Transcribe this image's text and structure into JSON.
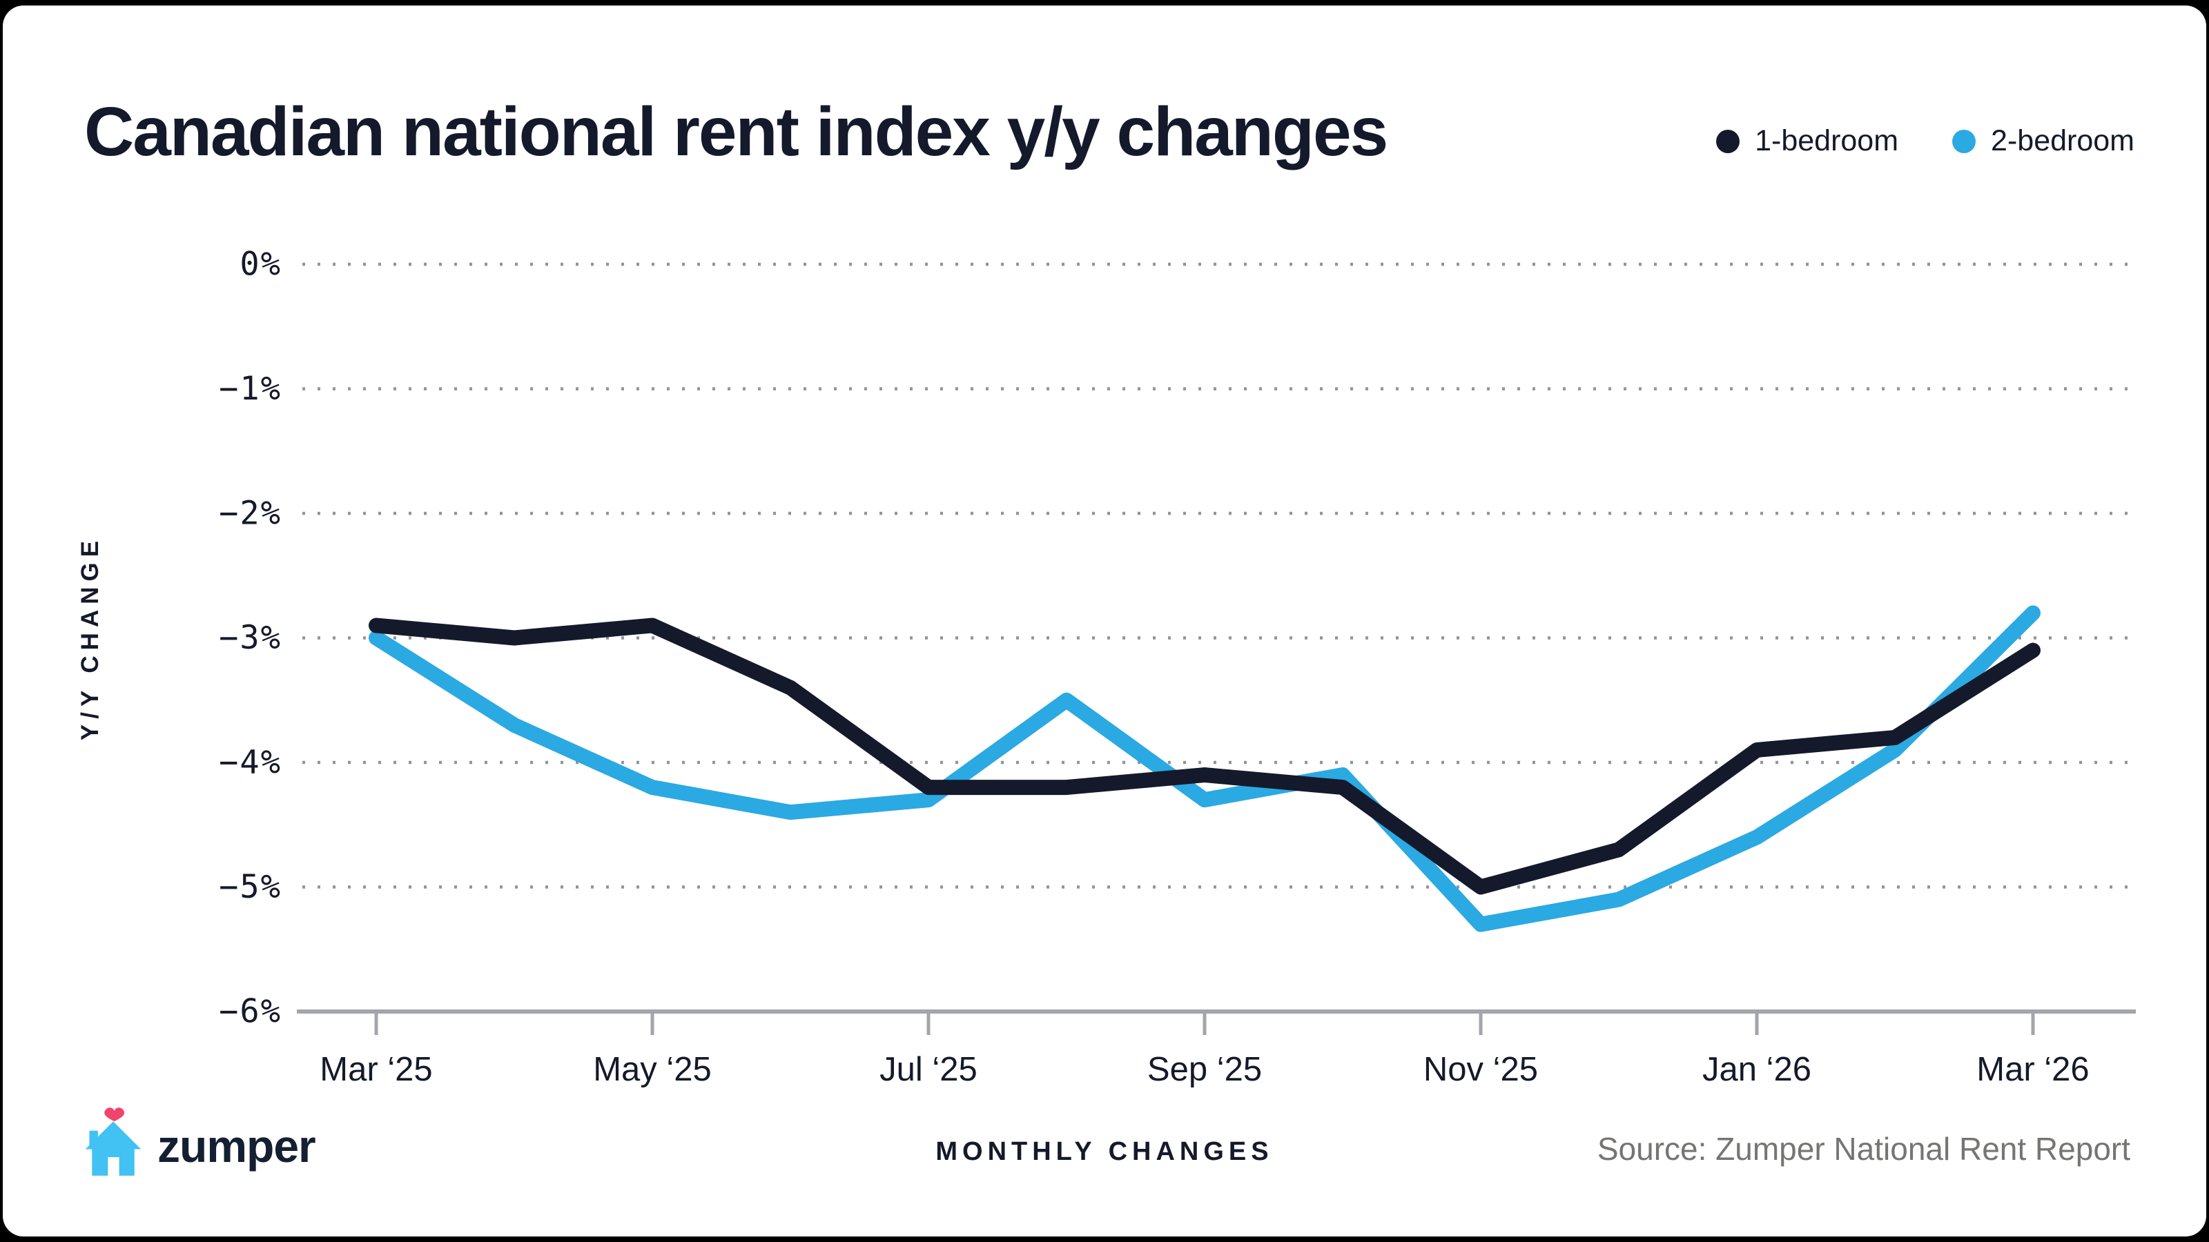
{
  "header": {
    "title": "Canadian national rent index y/y changes"
  },
  "legend": [
    {
      "label": "1-bedroom",
      "color": "#141a2b"
    },
    {
      "label": "2-bedroom",
      "color": "#2ba9e2"
    }
  ],
  "chart_data": {
    "type": "line",
    "title": "Canadian national rent index y/y changes",
    "x": [
      "Mar ‘25",
      "Apr ‘25",
      "May ‘25",
      "Jun ‘25",
      "Jul ‘25",
      "Aug ‘25",
      "Sep ‘25",
      "Oct ‘25",
      "Nov ‘25",
      "Dec ‘25",
      "Jan ‘26",
      "Feb ‘26",
      "Mar ‘26"
    ],
    "x_tick_labels": [
      "Mar ‘25",
      "May ‘25",
      "Jul ‘25",
      "Sep ‘25",
      "Nov ‘25",
      "Jan ‘26",
      "Mar ‘26"
    ],
    "series": [
      {
        "name": "1-bedroom",
        "color": "#141a2b",
        "values": [
          -2.9,
          -3.0,
          -2.9,
          -3.4,
          -4.2,
          -4.2,
          -4.1,
          -4.2,
          -5.0,
          -4.7,
          -3.9,
          -3.8,
          -3.1
        ]
      },
      {
        "name": "2-bedroom",
        "color": "#2ba9e2",
        "values": [
          -3.0,
          -3.7,
          -4.2,
          -4.4,
          -4.3,
          -3.5,
          -4.3,
          -4.1,
          -5.3,
          -5.1,
          -4.6,
          -3.9,
          -2.8
        ]
      }
    ],
    "ylabel": "Y/Y CHANGE",
    "yticks": [
      "0%",
      "−1%",
      "−2%",
      "−3%",
      "−4%",
      "−5%",
      "−6%"
    ],
    "ylim": [
      -6,
      0
    ],
    "grid": "dotted horizontal, solid bottom axis",
    "legend_position": "top-right"
  },
  "footer": {
    "brand": "zumper",
    "xlabel": "MONTHLY CHANGES",
    "source": "Source: Zumper National Rent Report"
  },
  "colors": {
    "background": "#000000",
    "card": "#ffffff",
    "ink": "#141a2b",
    "accent_blue": "#2ba9e2",
    "logo_house_blue": "#41c2f2",
    "logo_heart_pink": "#f2436b",
    "axis_gray": "#a2a5ab",
    "grid_gray": "#8f949c",
    "source_gray": "#767573"
  }
}
